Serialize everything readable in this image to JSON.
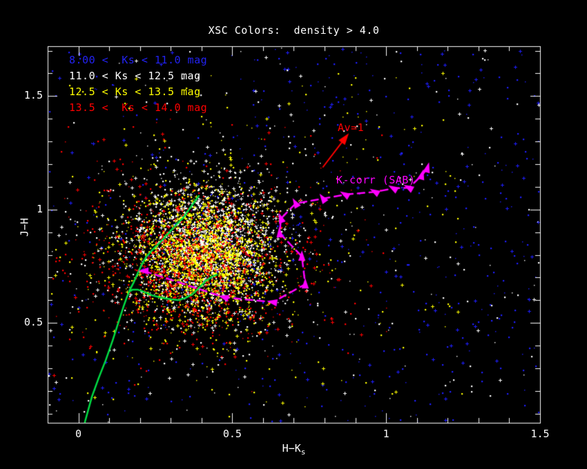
{
  "title": "XSC Colors:  density > 4.0",
  "legend": {
    "items": [
      {
        "label": "8.00 <  Ks < 11.0 mag",
        "color": "#2222f2"
      },
      {
        "label": "11.0 < Ks < 12.5 mag",
        "color": "#ffffff"
      },
      {
        "label": "12.5 < Ks < 13.5 mag",
        "color": "#ffff00"
      },
      {
        "label": "13.5 <  Ks < 14.0 mag",
        "color": "#ff0000"
      }
    ]
  },
  "axes": {
    "x": {
      "label": "H−K",
      "label_sub": "s",
      "minor_step": 0.1,
      "major_ticks": [
        {
          "v": 0,
          "label": "0"
        },
        {
          "v": 0.5,
          "label": "0.5"
        },
        {
          "v": 1,
          "label": "1"
        },
        {
          "v": 1.5,
          "label": "1.5"
        }
      ]
    },
    "y": {
      "label": "J−H",
      "minor_step": 0.1,
      "major_ticks": [
        {
          "v": 0.5,
          "label": "0.5"
        },
        {
          "v": 1,
          "label": "1"
        },
        {
          "v": 1.5,
          "label": "1.5"
        }
      ]
    }
  },
  "colors": {
    "background": "#000000",
    "axis": "#ffffff",
    "blue_points": "#1e1eff",
    "white_points": "#ffffff",
    "yellow_points": "#ffff00",
    "red_points": "#ff0000",
    "locus_green": "#00dd44",
    "track_magenta": "#ff00ff",
    "arrow_red": "#ff0000"
  },
  "chart_data": {
    "type": "scatter",
    "title": "XSC Colors:  density > 4.0",
    "xlabel": "H-Ks",
    "ylabel": "J-H",
    "xlim": [
      -0.1,
      1.5
    ],
    "ylim": [
      0.06,
      1.72
    ],
    "grid": false,
    "legend_position": "top-left",
    "series": [
      {
        "name": "8.00 <  Ks < 11.0 mag",
        "color": "#1e1eff",
        "seed": 11,
        "components": [
          {
            "kind": "uniform",
            "n": 300,
            "x": [
              -0.1,
              1.5
            ],
            "y": [
              0.06,
              1.72
            ]
          },
          {
            "kind": "uniform",
            "n": 240,
            "x": [
              0.55,
              1.5
            ],
            "y": [
              0.06,
              1.72
            ]
          },
          {
            "kind": "gauss",
            "n": 130,
            "cx": 0.42,
            "cy": 0.83,
            "sx": 0.13,
            "sy": 0.15
          }
        ]
      },
      {
        "name": "11.0 < Ks < 12.5 mag",
        "color": "#ffffff",
        "seed": 22,
        "components": [
          {
            "kind": "uniform",
            "n": 230,
            "x": [
              -0.1,
              1.5
            ],
            "y": [
              0.06,
              1.72
            ]
          },
          {
            "kind": "gauss",
            "n": 1600,
            "cx": 0.42,
            "cy": 0.85,
            "sx": 0.115,
            "sy": 0.145
          },
          {
            "kind": "gauss",
            "n": 400,
            "cx": 0.42,
            "cy": 0.8,
            "sx": 0.21,
            "sy": 0.24
          }
        ]
      },
      {
        "name": "12.5 < Ks < 13.5 mag",
        "color": "#ffff00",
        "seed": 33,
        "components": [
          {
            "kind": "uniform",
            "n": 170,
            "x": [
              -0.05,
              1.25
            ],
            "y": [
              0.1,
              1.6
            ]
          },
          {
            "kind": "gauss",
            "n": 1600,
            "cx": 0.405,
            "cy": 0.8,
            "sx": 0.11,
            "sy": 0.14
          },
          {
            "kind": "gauss",
            "n": 350,
            "cx": 0.4,
            "cy": 0.76,
            "sx": 0.19,
            "sy": 0.21
          }
        ]
      },
      {
        "name": "13.5 <  Ks < 14.0 mag",
        "color": "#ff0000",
        "seed": 44,
        "components": [
          {
            "kind": "uniform",
            "n": 120,
            "x": [
              -0.08,
              1.0
            ],
            "y": [
              0.35,
              1.4
            ]
          },
          {
            "kind": "gauss",
            "n": 800,
            "cx": 0.38,
            "cy": 0.75,
            "sx": 0.145,
            "sy": 0.16
          },
          {
            "kind": "gauss",
            "n": 250,
            "cx": 0.35,
            "cy": 0.72,
            "sx": 0.24,
            "sy": 0.21
          }
        ]
      }
    ],
    "overlays": {
      "stellar_locus": {
        "color": "#00dd44",
        "branches": [
          [
            [
              0.021,
              0.063
            ],
            [
              0.044,
              0.176
            ],
            [
              0.066,
              0.258
            ],
            [
              0.089,
              0.337
            ],
            [
              0.111,
              0.422
            ],
            [
              0.131,
              0.507
            ],
            [
              0.147,
              0.574
            ],
            [
              0.158,
              0.616
            ],
            [
              0.165,
              0.638
            ],
            [
              0.176,
              0.647
            ],
            [
              0.192,
              0.647
            ],
            [
              0.212,
              0.638
            ],
            [
              0.239,
              0.622
            ],
            [
              0.273,
              0.61
            ],
            [
              0.302,
              0.604
            ],
            [
              0.324,
              0.601
            ],
            [
              0.347,
              0.61
            ],
            [
              0.369,
              0.625
            ],
            [
              0.391,
              0.653
            ],
            [
              0.414,
              0.686
            ],
            [
              0.434,
              0.704
            ],
            [
              0.45,
              0.713
            ]
          ],
          [
            [
              0.165,
              0.641
            ],
            [
              0.18,
              0.68
            ],
            [
              0.192,
              0.717
            ],
            [
              0.205,
              0.756
            ],
            [
              0.221,
              0.793
            ],
            [
              0.243,
              0.826
            ],
            [
              0.268,
              0.859
            ],
            [
              0.293,
              0.896
            ],
            [
              0.317,
              0.932
            ],
            [
              0.34,
              0.963
            ],
            [
              0.36,
              1.002
            ],
            [
              0.378,
              1.036
            ],
            [
              0.391,
              1.06
            ]
          ]
        ]
      },
      "kcorr_track": {
        "label": "K-corr (SAB)",
        "color": "#ff00ff",
        "points": [
          {
            "x": 0.214,
            "y": 0.729,
            "angle": 180
          },
          {
            "x": 0.474,
            "y": 0.613,
            "angle": 165
          },
          {
            "x": 0.632,
            "y": 0.592,
            "angle": 170
          },
          {
            "x": 0.737,
            "y": 0.671,
            "angle": 90
          },
          {
            "x": 0.726,
            "y": 0.793,
            "angle": 90
          },
          {
            "x": 0.654,
            "y": 0.896,
            "angle": 95
          },
          {
            "x": 0.658,
            "y": 0.96,
            "angle": 110
          },
          {
            "x": 0.706,
            "y": 1.027,
            "angle": 120
          },
          {
            "x": 0.795,
            "y": 1.048,
            "angle": 125
          },
          {
            "x": 0.867,
            "y": 1.066,
            "angle": 150
          },
          {
            "x": 0.964,
            "y": 1.078,
            "angle": 150
          },
          {
            "x": 1.024,
            "y": 1.093,
            "angle": 150
          },
          {
            "x": 1.074,
            "y": 1.096,
            "angle": 150
          },
          {
            "x": 1.116,
            "y": 1.151,
            "angle": 75
          },
          {
            "x": 1.134,
            "y": 1.182,
            "angle": 75
          }
        ]
      },
      "extinction_vector": {
        "label": "Av=1",
        "color": "#ff0000",
        "tail": [
          0.795,
          1.188
        ],
        "head": [
          0.865,
          1.312
        ]
      }
    }
  }
}
